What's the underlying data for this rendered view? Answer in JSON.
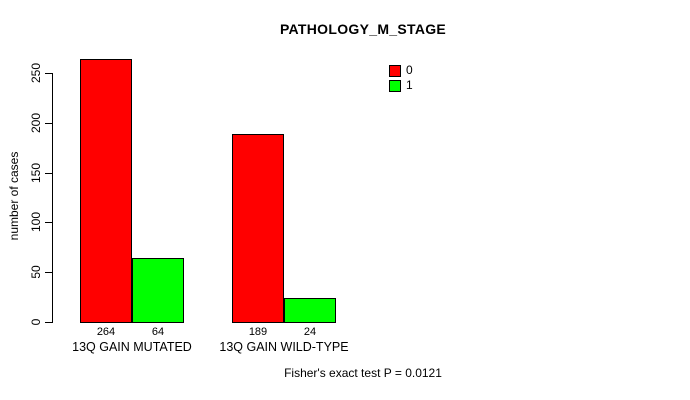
{
  "chart_data": {
    "type": "bar",
    "title": "PATHOLOGY_M_STAGE",
    "ylabel": "number of cases",
    "xlabel": "",
    "categories": [
      "13Q GAIN MUTATED",
      "13Q GAIN WILD-TYPE"
    ],
    "series": [
      {
        "name": "0",
        "color": "#ff0000",
        "values": [
          264,
          189
        ]
      },
      {
        "name": "1",
        "color": "#00ff00",
        "values": [
          64,
          24
        ]
      }
    ],
    "bar_value_labels": [
      [
        "264",
        "64"
      ],
      [
        "189",
        "24"
      ]
    ],
    "yticks": [
      0,
      50,
      100,
      150,
      200,
      250
    ],
    "ylim": [
      0,
      265
    ],
    "grid": false,
    "legend_position": "top-right",
    "footnote": "Fisher's exact test P = 0.0121"
  },
  "colors": {
    "background": "#ffffff",
    "text": "#000000",
    "bar_border": "#000000",
    "series_0": "#ff0000",
    "series_1": "#00ff00"
  }
}
